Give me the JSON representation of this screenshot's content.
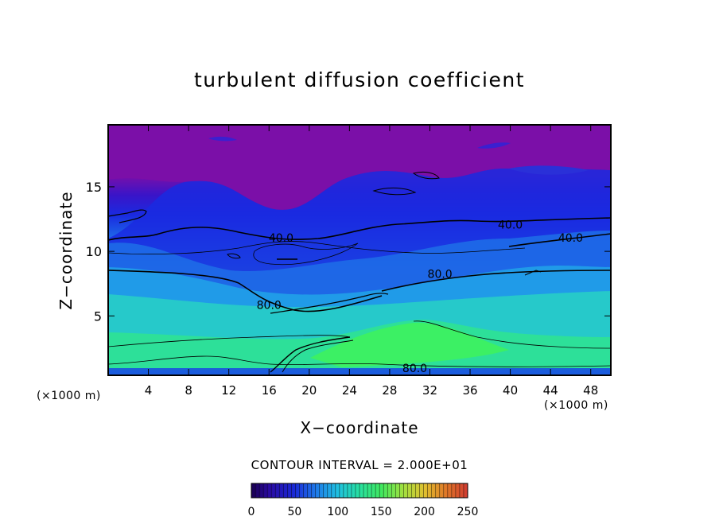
{
  "chart_data": {
    "type": "heatmap",
    "title": "turbulent diffusion coefficient",
    "xlabel": "X−coordinate",
    "ylabel": "Z−coordinate",
    "x_unit_label": "(×1000 m)",
    "y_unit_label": "(×1000 m)",
    "xlim": [
      0,
      50
    ],
    "ylim": [
      0.4,
      19.8
    ],
    "x_ticks": [
      4,
      8,
      12,
      16,
      20,
      24,
      28,
      32,
      36,
      40,
      44,
      48
    ],
    "y_ticks": [
      5,
      10,
      15
    ],
    "contour_interval_text": "CONTOUR INTERVAL = 2.000E+01",
    "contour_labels": [
      {
        "text": "40.0",
        "x": 17.2,
        "z": 11.0
      },
      {
        "text": "40.0",
        "x": 40.0,
        "z": 12.0
      },
      {
        "text": "40.0",
        "x": 46.0,
        "z": 11.0
      },
      {
        "text": "80.0",
        "x": 33.0,
        "z": 8.2
      },
      {
        "text": "80.0",
        "x": 16.0,
        "z": 5.8
      },
      {
        "text": "80.0",
        "x": 30.5,
        "z": 0.9
      }
    ],
    "colorbar": {
      "min": 0,
      "max": 250,
      "ticks": [
        0,
        50,
        100,
        150,
        200,
        250
      ],
      "colors": [
        "#3a0a70",
        "#1616c0",
        "#1e64e6",
        "#22b4e6",
        "#28dcb4",
        "#2ee66e",
        "#6ee646",
        "#c8e030",
        "#e0a028",
        "#d05030"
      ]
    },
    "bands": {
      "upper_purple": "#7b0fa8",
      "deep_blue": "#1a2ae0",
      "mid_blue": "#1e6ee8",
      "sky": "#20a8e8",
      "teal": "#28d8c0",
      "green": "#30e68c",
      "bright_green": "#3ef25e",
      "surface_blue": "#1a50e0"
    }
  }
}
